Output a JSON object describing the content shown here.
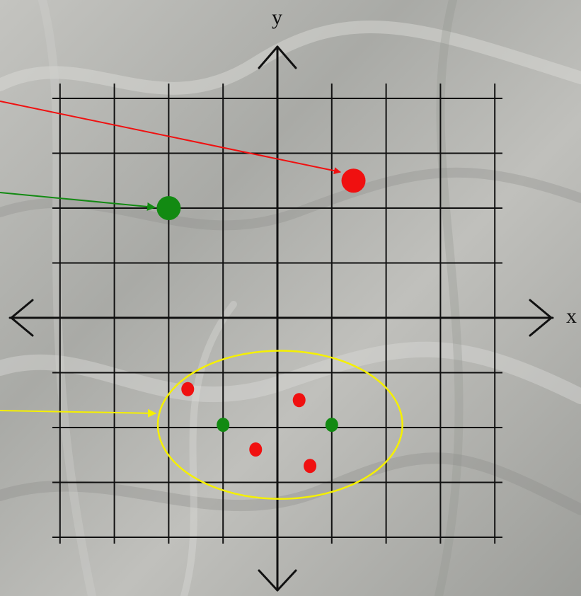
{
  "diagram": {
    "x_axis_label": "x",
    "y_axis_label": "y",
    "grid": {
      "x_min": -4,
      "x_max": 4,
      "y_min": -4,
      "y_max": 4,
      "step": 1
    },
    "points": [
      {
        "name": "large-red-point",
        "x": 1.4,
        "y": 2.5,
        "color": "#f01010",
        "size": "large"
      },
      {
        "name": "large-green-point",
        "x": -2.0,
        "y": 2.0,
        "color": "#128a12",
        "size": "large"
      },
      {
        "name": "small-red-point",
        "x": -1.65,
        "y": -1.3,
        "color": "#f01010",
        "size": "small"
      },
      {
        "name": "small-red-point",
        "x": 0.4,
        "y": -1.5,
        "color": "#f01010",
        "size": "small"
      },
      {
        "name": "small-red-point",
        "x": -0.4,
        "y": -2.4,
        "color": "#f01010",
        "size": "small"
      },
      {
        "name": "small-red-point",
        "x": 0.6,
        "y": -2.7,
        "color": "#f01010",
        "size": "small"
      },
      {
        "name": "small-green-point",
        "x": -1.0,
        "y": -1.95,
        "color": "#128a12",
        "size": "small"
      },
      {
        "name": "small-green-point",
        "x": 1.0,
        "y": -1.95,
        "color": "#128a12",
        "size": "small"
      }
    ],
    "ellipse": {
      "center_x": 0.05,
      "center_y": -1.95,
      "radius_x": 2.25,
      "radius_y": 1.35,
      "color": "#f5f000"
    },
    "pointer_arrows": [
      {
        "name": "red-pointer-arrow",
        "color": "#f01010",
        "target": "large-red-point"
      },
      {
        "name": "green-pointer-arrow",
        "color": "#128a12",
        "target": "large-green-point"
      },
      {
        "name": "yellow-pointer-arrow",
        "color": "#f5f000",
        "target": "ellipse"
      }
    ]
  }
}
